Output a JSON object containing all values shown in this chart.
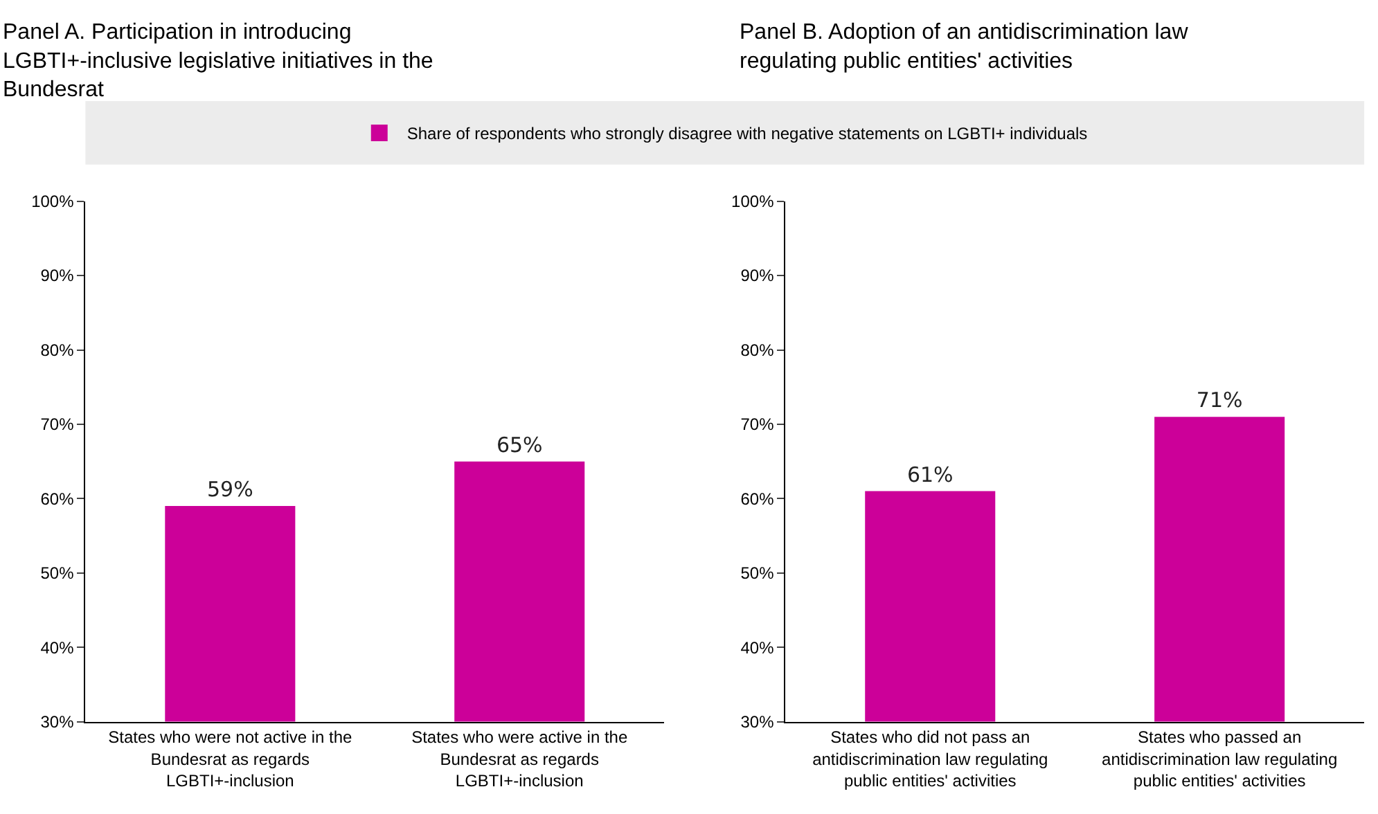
{
  "chart_data": [
    {
      "type": "bar",
      "title": "Panel A. Participation in introducing LGBTI+-inclusive legislative initiatives in the Bundesrat",
      "categories": [
        "States who were not active in the Bundesrat as regards LGBTI+-inclusion",
        "States who were active in the Bundesrat as regards LGBTI+-inclusion"
      ],
      "series": [
        {
          "name": "Share of respondents who strongly disagree with negative statements on LGBTI+ individuals",
          "color": "#cc0099",
          "values": [
            59,
            65
          ],
          "value_labels": [
            "59%",
            "65%"
          ]
        }
      ],
      "ylim": [
        30,
        100
      ],
      "yticks": [
        {
          "value": 30,
          "label": "30%"
        },
        {
          "value": 40,
          "label": "40%"
        },
        {
          "value": 50,
          "label": "50%"
        },
        {
          "value": 60,
          "label": "60%"
        },
        {
          "value": 70,
          "label": "70%"
        },
        {
          "value": 80,
          "label": "80%"
        },
        {
          "value": 90,
          "label": "90%"
        },
        {
          "value": 100,
          "label": "100%"
        }
      ],
      "grid": false,
      "legend": "top"
    },
    {
      "type": "bar",
      "title": "Panel B. Adoption of an antidiscrimination law regulating public entities' activities",
      "categories": [
        "States who did not pass an antidiscrimination law regulating public entities' activities",
        "States who passed an antidiscrimination law regulating public entities' activities"
      ],
      "series": [
        {
          "color": "#cc0099",
          "values": [
            61,
            71
          ],
          "value_labels": [
            "61%",
            "71%"
          ]
        }
      ],
      "ylim": [
        30,
        100
      ],
      "yticks": [
        {
          "value": 30,
          "label": "30%"
        },
        {
          "value": 40,
          "label": "40%"
        },
        {
          "value": 50,
          "label": "50%"
        },
        {
          "value": 60,
          "label": "60%"
        },
        {
          "value": 70,
          "label": "70%"
        },
        {
          "value": 80,
          "label": "80%"
        },
        {
          "value": 90,
          "label": "90%"
        },
        {
          "value": 100,
          "label": "100%"
        }
      ],
      "grid": false
    }
  ]
}
